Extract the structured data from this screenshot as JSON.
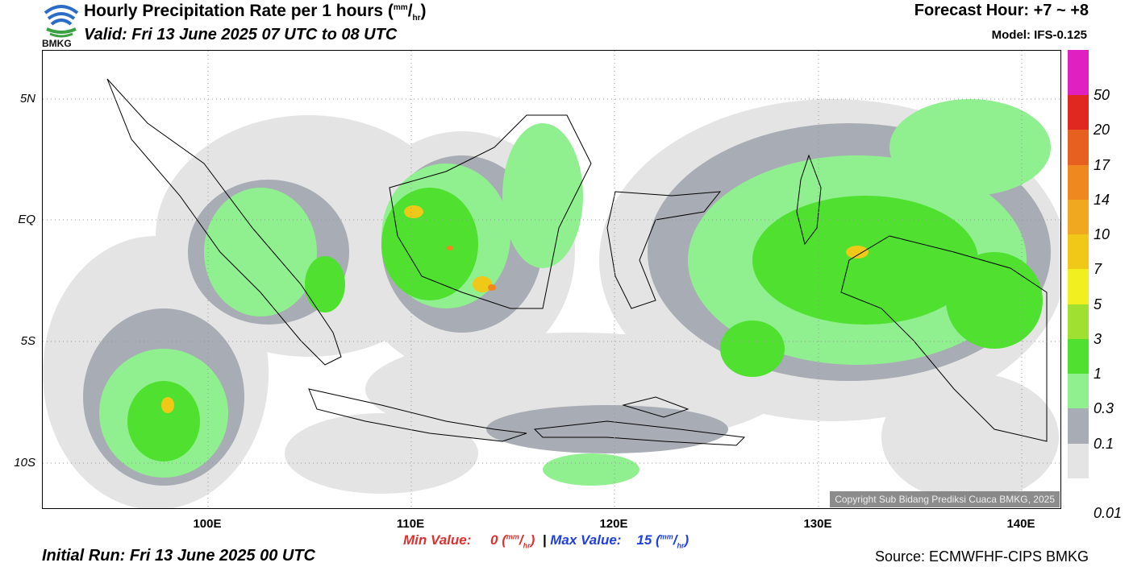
{
  "header": {
    "logo_text": "BMKG",
    "title_main": "Hourly Precipitation Rate per 1 hours (",
    "title_unit_num": "mm",
    "title_unit_slash": "/",
    "title_unit_den": "hr",
    "title_close": ")",
    "valid": "Valid: Fri 13 June 2025 07 UTC to 08 UTC",
    "forecast_hour": "Forecast Hour: +7 ~ +8",
    "model": "Model: IFS-0.125"
  },
  "map": {
    "lat_labels": [
      "5N",
      "EQ",
      "5S",
      "10S"
    ],
    "lon_labels": [
      "100E",
      "110E",
      "120E",
      "130E",
      "140E"
    ],
    "copyright": "Copyright Sub Bidang Prediksi Cuaca BMKG, 2025"
  },
  "colorbar": {
    "labels": [
      "50",
      "20",
      "17",
      "14",
      "10",
      "7",
      "5",
      "3",
      "1",
      "0.3",
      "0.1",
      "0.01"
    ],
    "colors": [
      "#e020c0",
      "#e02820",
      "#e86020",
      "#f08820",
      "#f0a820",
      "#f0c818",
      "#f0f020",
      "#a0e030",
      "#50e030",
      "#90f090",
      "#a8acb4",
      "#e4e4e4"
    ]
  },
  "footer": {
    "min_label": "Min Value:",
    "min_value": "0",
    "separator": "|",
    "max_label": "Max Value:",
    "max_value": "15",
    "unit_num": "mm",
    "unit_den": "hr",
    "initial_run": "Initial Run: Fri 13 June 2025 00 UTC",
    "source": "Source: ECMWFHF-CIPS BMKG"
  }
}
